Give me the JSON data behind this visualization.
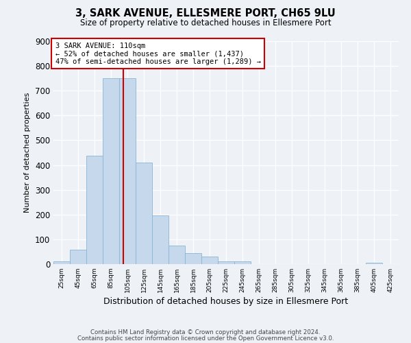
{
  "title": "3, SARK AVENUE, ELLESMERE PORT, CH65 9LU",
  "subtitle": "Size of property relative to detached houses in Ellesmere Port",
  "xlabel": "Distribution of detached houses by size in Ellesmere Port",
  "ylabel": "Number of detached properties",
  "bar_color": "#c6d9ec",
  "bar_edge_color": "#8ab4d4",
  "bins_left": [
    25,
    45,
    65,
    85,
    105,
    125,
    145,
    165,
    185,
    205,
    225,
    245,
    265,
    285,
    305,
    325,
    345,
    365,
    385,
    405,
    425
  ],
  "bar_heights": [
    10,
    58,
    437,
    750,
    750,
    410,
    198,
    75,
    45,
    30,
    10,
    10,
    0,
    0,
    0,
    0,
    0,
    0,
    0,
    5,
    0
  ],
  "bin_width": 20,
  "property_size": 110,
  "vline_color": "#cc0000",
  "annotation_line1": "3 SARK AVENUE: 110sqm",
  "annotation_line2": "← 52% of detached houses are smaller (1,437)",
  "annotation_line3": "47% of semi-detached houses are larger (1,289) →",
  "annotation_box_color": "#ffffff",
  "annotation_box_edge_color": "#cc0000",
  "ylim": [
    0,
    900
  ],
  "yticks": [
    0,
    100,
    200,
    300,
    400,
    500,
    600,
    700,
    800,
    900
  ],
  "footer_line1": "Contains HM Land Registry data © Crown copyright and database right 2024.",
  "footer_line2": "Contains public sector information licensed under the Open Government Licence v3.0.",
  "background_color": "#eef2f7",
  "plot_bg_color": "#eef2f7",
  "grid_color": "#ffffff"
}
